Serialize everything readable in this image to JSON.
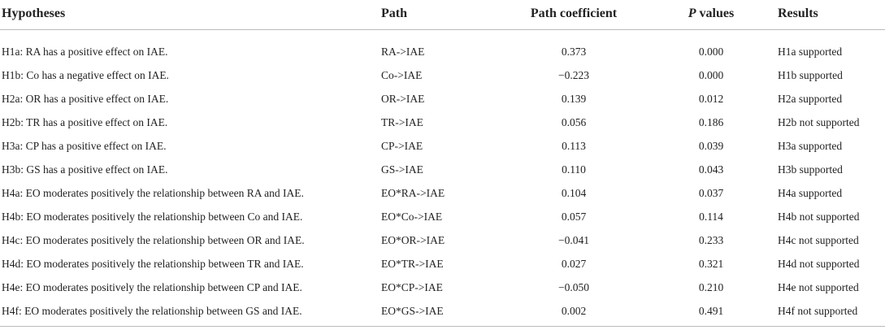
{
  "table": {
    "header": [
      "Hypotheses",
      "Path",
      "Path coefficient",
      "P values",
      "Results"
    ],
    "rows": [
      [
        "H1a: RA has a positive effect on IAE.",
        "RA->IAE",
        "0.373",
        "0.000",
        "H1a supported"
      ],
      [
        "H1b: Co has a negative effect on IAE.",
        "Co->IAE",
        "−0.223",
        "0.000",
        "H1b supported"
      ],
      [
        "H2a: OR has a positive effect on IAE.",
        "OR->IAE",
        "0.139",
        "0.012",
        "H2a supported"
      ],
      [
        "H2b: TR has a positive effect on IAE.",
        "TR->IAE",
        "0.056",
        "0.186",
        "H2b not supported"
      ],
      [
        "H3a: CP has a positive effect on IAE.",
        "CP->IAE",
        "0.113",
        "0.039",
        "H3a supported"
      ],
      [
        "H3b: GS has a positive effect on IAE.",
        "GS->IAE",
        "0.110",
        "0.043",
        "H3b supported"
      ],
      [
        "H4a: EO moderates positively the relationship between RA and IAE.",
        "EO*RA->IAE",
        "0.104",
        "0.037",
        "H4a supported"
      ],
      [
        "H4b: EO moderates positively the relationship between Co and IAE.",
        "EO*Co->IAE",
        "0.057",
        "0.114",
        "H4b not supported"
      ],
      [
        "H4c: EO moderates positively the relationship between OR and IAE.",
        "EO*OR->IAE",
        "−0.041",
        "0.233",
        "H4c not supported"
      ],
      [
        "H4d: EO moderates positively the relationship between TR and IAE.",
        "EO*TR->IAE",
        "0.027",
        "0.321",
        "H4d not supported"
      ],
      [
        "H4e: EO moderates positively the relationship between CP and IAE.",
        "EO*CP->IAE",
        "−0.050",
        "0.210",
        "H4e not supported"
      ],
      [
        "H4f: EO moderates positively the relationship between GS and IAE.",
        "EO*GS->IAE",
        "0.002",
        "0.491",
        "H4f not supported"
      ]
    ]
  }
}
